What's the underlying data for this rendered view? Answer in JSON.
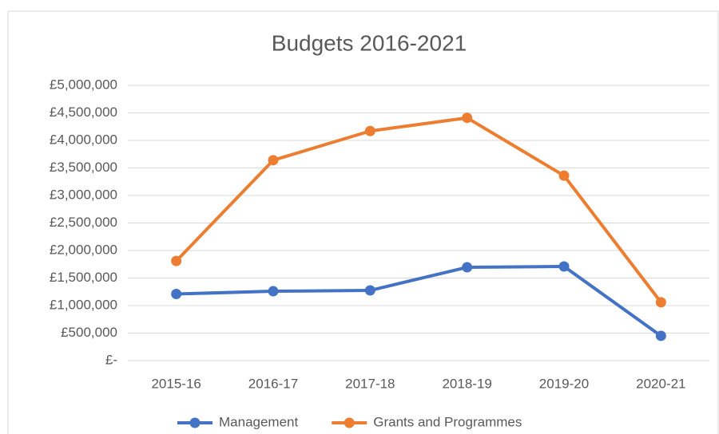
{
  "chart_data": {
    "type": "line",
    "title": "Budgets 2016-2021",
    "categories": [
      "2015-16",
      "2016-17",
      "2017-18",
      "2018-19",
      "2019-20",
      "2020-21"
    ],
    "series": [
      {
        "name": "Management",
        "color": "#4472c4",
        "values": [
          1210000,
          1260000,
          1275000,
          1695000,
          1710000,
          450000
        ]
      },
      {
        "name": "Grants and Programmes",
        "color": "#ed7d31",
        "values": [
          1810000,
          3640000,
          4170000,
          4410000,
          3360000,
          1060000
        ]
      }
    ],
    "ylim": [
      0,
      5000000
    ],
    "yticks": [
      {
        "value": 0,
        "label": "£-"
      },
      {
        "value": 500000,
        "label": "£500,000"
      },
      {
        "value": 1000000,
        "label": "£1,000,000"
      },
      {
        "value": 1500000,
        "label": "£1,500,000"
      },
      {
        "value": 2000000,
        "label": "£2,000,000"
      },
      {
        "value": 2500000,
        "label": "£2,500,000"
      },
      {
        "value": 3000000,
        "label": "£3,000,000"
      },
      {
        "value": 3500000,
        "label": "£3,500,000"
      },
      {
        "value": 4000000,
        "label": "£4,000,000"
      },
      {
        "value": 4500000,
        "label": "£4,500,000"
      },
      {
        "value": 5000000,
        "label": "£5,000,000"
      }
    ],
    "grid": true,
    "legend": "bottom"
  }
}
